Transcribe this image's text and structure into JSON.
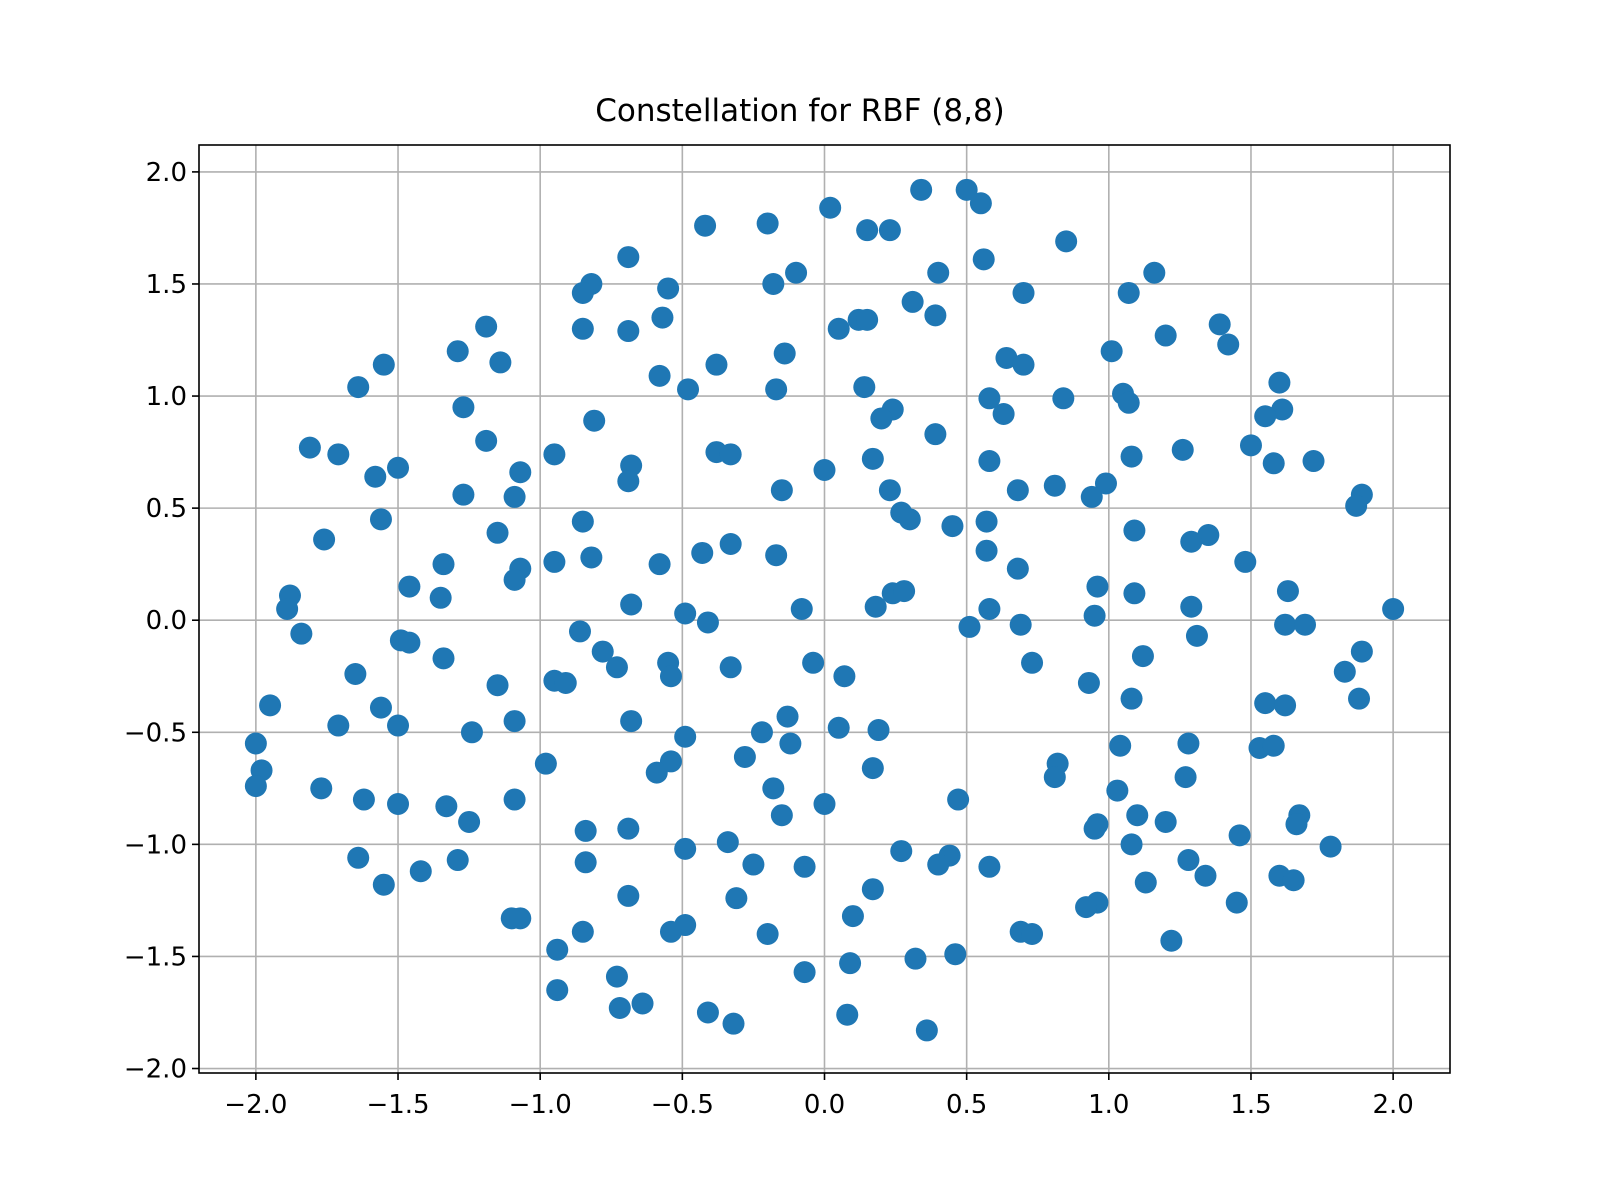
{
  "chart_data": {
    "type": "scatter",
    "title": "Constellation for RBF (8,8)",
    "xlabel": "",
    "ylabel": "",
    "xlim": [
      -2.2,
      2.2
    ],
    "ylim": [
      -2.02,
      2.12
    ],
    "xticks": [
      -2.0,
      -1.5,
      -1.0,
      -0.5,
      0.0,
      0.5,
      1.0,
      1.5,
      2.0
    ],
    "xtick_labels": [
      "−2.0",
      "−1.5",
      "−1.0",
      "−0.5",
      "0.0",
      "0.5",
      "1.0",
      "1.5",
      "2.0"
    ],
    "yticks": [
      2.0,
      1.5,
      1.0,
      0.5,
      0.0,
      -0.5,
      -1.0,
      -1.5,
      -2.0
    ],
    "ytick_labels": [
      "2.0",
      "1.5",
      "1.0",
      "0.5",
      "0.0",
      "−0.5",
      "−1.0",
      "−1.5",
      "−2.0"
    ],
    "grid": true,
    "marker_color": "#1f77b4",
    "series": [
      {
        "points": [
          [
            0.34,
            1.92
          ],
          [
            0.5,
            1.92
          ],
          [
            0.55,
            1.86
          ],
          [
            0.02,
            1.84
          ],
          [
            -0.2,
            1.77
          ],
          [
            -0.42,
            1.76
          ],
          [
            0.15,
            1.74
          ],
          [
            0.23,
            1.74
          ],
          [
            0.85,
            1.69
          ],
          [
            -0.69,
            1.62
          ],
          [
            0.56,
            1.61
          ],
          [
            -0.1,
            1.55
          ],
          [
            0.4,
            1.55
          ],
          [
            1.16,
            1.55
          ],
          [
            -0.82,
            1.5
          ],
          [
            -0.18,
            1.5
          ],
          [
            -0.55,
            1.48
          ],
          [
            -0.85,
            1.46
          ],
          [
            0.7,
            1.46
          ],
          [
            1.07,
            1.46
          ],
          [
            0.31,
            1.42
          ],
          [
            0.39,
            1.36
          ],
          [
            -0.57,
            1.35
          ],
          [
            0.12,
            1.34
          ],
          [
            0.15,
            1.34
          ],
          [
            -0.85,
            1.3
          ],
          [
            -0.69,
            1.29
          ],
          [
            0.05,
            1.3
          ],
          [
            1.39,
            1.32
          ],
          [
            -1.19,
            1.31
          ],
          [
            1.2,
            1.27
          ],
          [
            1.42,
            1.23
          ],
          [
            -1.29,
            1.2
          ],
          [
            1.01,
            1.2
          ],
          [
            -0.14,
            1.19
          ],
          [
            0.64,
            1.17
          ],
          [
            -1.55,
            1.14
          ],
          [
            -1.14,
            1.15
          ],
          [
            -0.38,
            1.14
          ],
          [
            0.7,
            1.14
          ],
          [
            -0.58,
            1.09
          ],
          [
            -1.64,
            1.04
          ],
          [
            -0.48,
            1.03
          ],
          [
            -0.17,
            1.03
          ],
          [
            0.14,
            1.04
          ],
          [
            1.05,
            1.01
          ],
          [
            0.58,
            0.99
          ],
          [
            0.84,
            0.99
          ],
          [
            1.07,
            0.97
          ],
          [
            -1.27,
            0.95
          ],
          [
            0.24,
            0.94
          ],
          [
            0.63,
            0.92
          ],
          [
            1.6,
            1.06
          ],
          [
            1.61,
            0.94
          ],
          [
            1.55,
            0.91
          ],
          [
            0.2,
            0.9
          ],
          [
            -0.81,
            0.89
          ],
          [
            0.39,
            0.83
          ],
          [
            -1.19,
            0.8
          ],
          [
            1.5,
            0.78
          ],
          [
            -1.81,
            0.77
          ],
          [
            -1.71,
            0.74
          ],
          [
            -0.95,
            0.74
          ],
          [
            -0.38,
            0.75
          ],
          [
            -0.33,
            0.74
          ],
          [
            1.08,
            0.73
          ],
          [
            1.26,
            0.76
          ],
          [
            0.17,
            0.72
          ],
          [
            0.58,
            0.71
          ],
          [
            1.58,
            0.7
          ],
          [
            1.72,
            0.71
          ],
          [
            -0.68,
            0.69
          ],
          [
            -1.5,
            0.68
          ],
          [
            -1.07,
            0.66
          ],
          [
            0.0,
            0.67
          ],
          [
            -0.69,
            0.62
          ],
          [
            -1.58,
            0.64
          ],
          [
            0.81,
            0.6
          ],
          [
            0.99,
            0.61
          ],
          [
            -0.15,
            0.58
          ],
          [
            0.23,
            0.58
          ],
          [
            0.68,
            0.58
          ],
          [
            -1.27,
            0.56
          ],
          [
            -1.09,
            0.55
          ],
          [
            0.94,
            0.55
          ],
          [
            1.89,
            0.56
          ],
          [
            1.87,
            0.51
          ],
          [
            0.27,
            0.48
          ],
          [
            0.3,
            0.45
          ],
          [
            -1.56,
            0.45
          ],
          [
            -0.85,
            0.44
          ],
          [
            0.45,
            0.42
          ],
          [
            0.57,
            0.44
          ],
          [
            1.09,
            0.4
          ],
          [
            1.35,
            0.38
          ],
          [
            1.29,
            0.35
          ],
          [
            -1.76,
            0.36
          ],
          [
            -1.15,
            0.39
          ],
          [
            -0.33,
            0.34
          ],
          [
            -0.43,
            0.3
          ],
          [
            -0.17,
            0.29
          ],
          [
            0.57,
            0.31
          ],
          [
            -0.82,
            0.28
          ],
          [
            1.48,
            0.26
          ],
          [
            -1.34,
            0.25
          ],
          [
            -0.95,
            0.26
          ],
          [
            -0.58,
            0.25
          ],
          [
            -1.07,
            0.23
          ],
          [
            0.68,
            0.23
          ],
          [
            -1.09,
            0.18
          ],
          [
            -1.46,
            0.15
          ],
          [
            0.96,
            0.15
          ],
          [
            0.24,
            0.12
          ],
          [
            0.28,
            0.13
          ],
          [
            1.09,
            0.12
          ],
          [
            1.63,
            0.13
          ],
          [
            -1.88,
            0.11
          ],
          [
            -1.35,
            0.1
          ],
          [
            -0.68,
            0.07
          ],
          [
            0.18,
            0.06
          ],
          [
            0.58,
            0.05
          ],
          [
            1.29,
            0.06
          ],
          [
            -1.89,
            0.05
          ],
          [
            -0.49,
            0.03
          ],
          [
            -0.08,
            0.05
          ],
          [
            0.95,
            0.02
          ],
          [
            2.0,
            0.05
          ],
          [
            -0.41,
            -0.01
          ],
          [
            0.69,
            -0.02
          ],
          [
            1.62,
            -0.02
          ],
          [
            1.69,
            -0.02
          ],
          [
            0.51,
            -0.03
          ],
          [
            -1.84,
            -0.06
          ],
          [
            -0.86,
            -0.05
          ],
          [
            -1.49,
            -0.09
          ],
          [
            -1.46,
            -0.1
          ],
          [
            1.31,
            -0.07
          ],
          [
            -0.78,
            -0.14
          ],
          [
            -1.34,
            -0.17
          ],
          [
            1.12,
            -0.16
          ],
          [
            1.89,
            -0.14
          ],
          [
            -0.55,
            -0.19
          ],
          [
            -0.73,
            -0.21
          ],
          [
            -0.33,
            -0.21
          ],
          [
            -0.04,
            -0.19
          ],
          [
            0.73,
            -0.19
          ],
          [
            1.83,
            -0.23
          ],
          [
            -1.65,
            -0.24
          ],
          [
            -0.54,
            -0.25
          ],
          [
            0.07,
            -0.25
          ],
          [
            -0.95,
            -0.27
          ],
          [
            -0.91,
            -0.28
          ],
          [
            -1.15,
            -0.29
          ],
          [
            0.93,
            -0.28
          ],
          [
            1.08,
            -0.35
          ],
          [
            1.88,
            -0.35
          ],
          [
            1.55,
            -0.37
          ],
          [
            1.62,
            -0.38
          ],
          [
            -1.95,
            -0.38
          ],
          [
            -1.56,
            -0.39
          ],
          [
            -0.13,
            -0.43
          ],
          [
            -1.09,
            -0.45
          ],
          [
            -0.68,
            -0.45
          ],
          [
            -1.71,
            -0.47
          ],
          [
            -1.5,
            -0.47
          ],
          [
            0.05,
            -0.48
          ],
          [
            0.19,
            -0.49
          ],
          [
            -1.24,
            -0.5
          ],
          [
            -0.22,
            -0.5
          ],
          [
            -0.49,
            -0.52
          ],
          [
            -2.0,
            -0.55
          ],
          [
            -0.12,
            -0.55
          ],
          [
            1.04,
            -0.56
          ],
          [
            1.28,
            -0.55
          ],
          [
            1.53,
            -0.57
          ],
          [
            1.58,
            -0.56
          ],
          [
            -0.28,
            -0.61
          ],
          [
            -1.98,
            -0.67
          ],
          [
            -0.98,
            -0.64
          ],
          [
            -0.54,
            -0.63
          ],
          [
            -0.59,
            -0.68
          ],
          [
            0.17,
            -0.66
          ],
          [
            0.82,
            -0.64
          ],
          [
            0.81,
            -0.7
          ],
          [
            1.27,
            -0.7
          ],
          [
            -2.0,
            -0.74
          ],
          [
            -1.77,
            -0.75
          ],
          [
            -0.18,
            -0.75
          ],
          [
            1.03,
            -0.76
          ],
          [
            -1.62,
            -0.8
          ],
          [
            -1.09,
            -0.8
          ],
          [
            0.47,
            -0.8
          ],
          [
            -1.5,
            -0.82
          ],
          [
            0.0,
            -0.82
          ],
          [
            -1.33,
            -0.83
          ],
          [
            -0.15,
            -0.87
          ],
          [
            1.1,
            -0.87
          ],
          [
            1.67,
            -0.87
          ],
          [
            -1.25,
            -0.9
          ],
          [
            1.2,
            -0.9
          ],
          [
            -0.84,
            -0.94
          ],
          [
            -0.69,
            -0.93
          ],
          [
            0.96,
            -0.91
          ],
          [
            0.95,
            -0.93
          ],
          [
            1.66,
            -0.91
          ],
          [
            1.46,
            -0.96
          ],
          [
            -0.34,
            -0.99
          ],
          [
            -0.49,
            -1.02
          ],
          [
            1.08,
            -1.0
          ],
          [
            1.78,
            -1.01
          ],
          [
            0.27,
            -1.03
          ],
          [
            -1.64,
            -1.06
          ],
          [
            -1.29,
            -1.07
          ],
          [
            0.44,
            -1.05
          ],
          [
            1.28,
            -1.07
          ],
          [
            -0.84,
            -1.08
          ],
          [
            -0.25,
            -1.09
          ],
          [
            -0.07,
            -1.1
          ],
          [
            0.4,
            -1.09
          ],
          [
            0.58,
            -1.1
          ],
          [
            -1.42,
            -1.12
          ],
          [
            1.34,
            -1.14
          ],
          [
            1.6,
            -1.14
          ],
          [
            1.65,
            -1.16
          ],
          [
            -1.55,
            -1.18
          ],
          [
            1.13,
            -1.17
          ],
          [
            0.17,
            -1.2
          ],
          [
            -0.69,
            -1.23
          ],
          [
            -0.31,
            -1.24
          ],
          [
            0.96,
            -1.26
          ],
          [
            1.45,
            -1.26
          ],
          [
            0.92,
            -1.28
          ],
          [
            -1.1,
            -1.33
          ],
          [
            -1.07,
            -1.33
          ],
          [
            0.1,
            -1.32
          ],
          [
            -0.49,
            -1.36
          ],
          [
            -0.54,
            -1.39
          ],
          [
            -0.85,
            -1.39
          ],
          [
            -0.2,
            -1.4
          ],
          [
            0.69,
            -1.39
          ],
          [
            0.73,
            -1.4
          ],
          [
            1.22,
            -1.43
          ],
          [
            -0.94,
            -1.47
          ],
          [
            0.32,
            -1.51
          ],
          [
            0.46,
            -1.49
          ],
          [
            0.09,
            -1.53
          ],
          [
            -0.07,
            -1.57
          ],
          [
            -0.73,
            -1.59
          ],
          [
            -0.94,
            -1.65
          ],
          [
            -0.64,
            -1.71
          ],
          [
            -0.72,
            -1.73
          ],
          [
            -0.41,
            -1.75
          ],
          [
            0.08,
            -1.76
          ],
          [
            -0.32,
            -1.8
          ],
          [
            0.36,
            -1.83
          ]
        ]
      }
    ]
  }
}
